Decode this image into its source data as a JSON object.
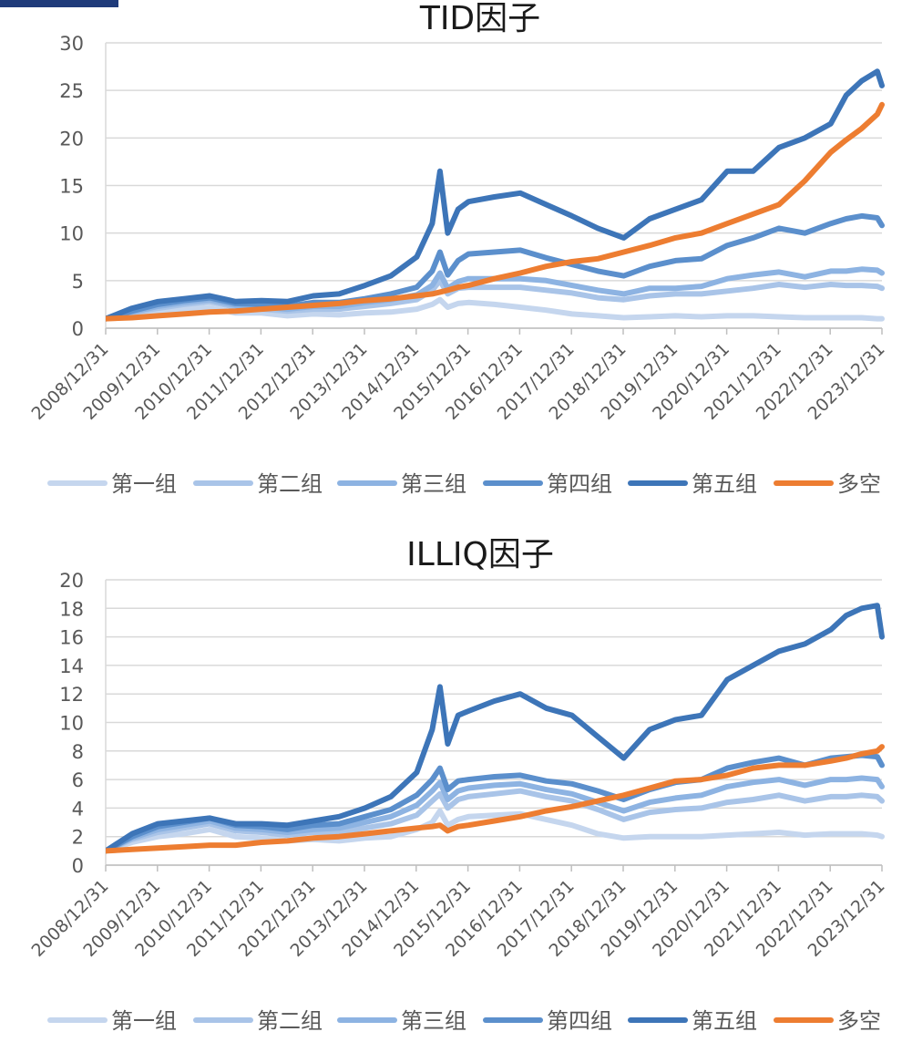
{
  "chart_data": [
    {
      "type": "line",
      "title": "TID因子",
      "x_ticks": [
        "2008/12/31",
        "2009/12/31",
        "2010/12/31",
        "2011/12/31",
        "2012/12/31",
        "2013/12/31",
        "2014/12/31",
        "2015/12/31",
        "2016/12/31",
        "2017/12/31",
        "2018/12/31",
        "2019/12/31",
        "2020/12/31",
        "2021/12/31",
        "2022/12/31",
        "2023/12/31"
      ],
      "x": [
        2008.99,
        2009.5,
        2010.0,
        2010.5,
        2011.0,
        2011.5,
        2012.0,
        2012.5,
        2013.0,
        2013.5,
        2014.0,
        2014.5,
        2015.0,
        2015.3,
        2015.45,
        2015.6,
        2015.8,
        2016.0,
        2016.5,
        2017.0,
        2017.5,
        2018.0,
        2018.5,
        2019.0,
        2019.5,
        2020.0,
        2020.5,
        2021.0,
        2021.5,
        2022.0,
        2022.5,
        2023.0,
        2023.3,
        2023.6,
        2023.9,
        2023.99
      ],
      "ylim": [
        0,
        30
      ],
      "y_ticks": [
        0,
        5,
        10,
        15,
        20,
        25,
        30
      ],
      "legend_position": "bottom",
      "grid": true,
      "series": [
        {
          "name": "第一组",
          "color": "#c5d6ee",
          "values": [
            1.0,
            1.4,
            1.8,
            2.0,
            2.2,
            1.6,
            1.6,
            1.3,
            1.5,
            1.4,
            1.6,
            1.7,
            2.0,
            2.5,
            3.0,
            2.2,
            2.6,
            2.7,
            2.5,
            2.2,
            1.9,
            1.5,
            1.3,
            1.1,
            1.2,
            1.3,
            1.2,
            1.3,
            1.3,
            1.2,
            1.1,
            1.1,
            1.1,
            1.1,
            1.0,
            1.0
          ]
        },
        {
          "name": "第二组",
          "color": "#a9c4e8",
          "values": [
            1.0,
            1.6,
            2.1,
            2.5,
            2.8,
            2.2,
            2.0,
            1.8,
            2.0,
            2.0,
            2.3,
            2.6,
            3.0,
            4.0,
            5.0,
            3.6,
            4.2,
            4.3,
            4.3,
            4.3,
            4.0,
            3.7,
            3.2,
            3.0,
            3.4,
            3.6,
            3.6,
            3.9,
            4.2,
            4.6,
            4.3,
            4.6,
            4.5,
            4.5,
            4.4,
            4.2
          ]
        },
        {
          "name": "第三组",
          "color": "#8db3e2",
          "values": [
            1.0,
            1.7,
            2.3,
            2.7,
            3.0,
            2.4,
            2.2,
            2.0,
            2.3,
            2.3,
            2.7,
            3.0,
            3.5,
            4.5,
            5.8,
            4.2,
            4.9,
            5.2,
            5.2,
            5.2,
            5.0,
            4.5,
            4.0,
            3.6,
            4.2,
            4.2,
            4.4,
            5.2,
            5.6,
            5.9,
            5.4,
            6.0,
            6.0,
            6.2,
            6.1,
            5.8
          ]
        },
        {
          "name": "第四组",
          "color": "#5b8fcc",
          "values": [
            1.0,
            1.8,
            2.5,
            2.9,
            3.2,
            2.6,
            2.5,
            2.3,
            2.7,
            2.7,
            3.1,
            3.6,
            4.3,
            6.0,
            8.0,
            5.6,
            7.1,
            7.8,
            8.0,
            8.2,
            7.4,
            6.7,
            6.0,
            5.5,
            6.5,
            7.1,
            7.3,
            8.7,
            9.5,
            10.5,
            10.0,
            11.0,
            11.5,
            11.8,
            11.6,
            10.8
          ]
        },
        {
          "name": "第五组",
          "color": "#3d75b8",
          "values": [
            1.0,
            2.1,
            2.8,
            3.1,
            3.4,
            2.8,
            2.9,
            2.8,
            3.4,
            3.6,
            4.5,
            5.5,
            7.5,
            11.0,
            16.5,
            10.0,
            12.5,
            13.3,
            13.8,
            14.2,
            13.0,
            11.8,
            10.5,
            9.5,
            11.5,
            12.5,
            13.5,
            16.5,
            16.5,
            19.0,
            20.0,
            21.5,
            24.5,
            26.0,
            27.0,
            25.5
          ]
        },
        {
          "name": "多空",
          "color": "#ed7d31",
          "values": [
            1.0,
            1.1,
            1.3,
            1.5,
            1.7,
            1.8,
            2.0,
            2.2,
            2.4,
            2.6,
            2.9,
            3.1,
            3.4,
            3.6,
            3.8,
            4.0,
            4.3,
            4.5,
            5.2,
            5.8,
            6.5,
            7.0,
            7.3,
            8.0,
            8.7,
            9.5,
            10.0,
            11.0,
            12.0,
            13.0,
            15.5,
            18.5,
            19.8,
            21.0,
            22.5,
            23.5
          ]
        }
      ]
    },
    {
      "type": "line",
      "title": "ILLIQ因子",
      "x_ticks": [
        "2008/12/31",
        "2009/12/31",
        "2010/12/31",
        "2011/12/31",
        "2012/12/31",
        "2013/12/31",
        "2014/12/31",
        "2015/12/31",
        "2016/12/31",
        "2017/12/31",
        "2018/12/31",
        "2019/12/31",
        "2020/12/31",
        "2021/12/31",
        "2022/12/31",
        "2023/12/31"
      ],
      "x": [
        2008.99,
        2009.5,
        2010.0,
        2010.5,
        2011.0,
        2011.5,
        2012.0,
        2012.5,
        2013.0,
        2013.5,
        2014.0,
        2014.5,
        2015.0,
        2015.3,
        2015.45,
        2015.6,
        2015.8,
        2016.0,
        2016.5,
        2017.0,
        2017.5,
        2018.0,
        2018.5,
        2019.0,
        2019.5,
        2020.0,
        2020.5,
        2021.0,
        2021.5,
        2022.0,
        2022.5,
        2023.0,
        2023.3,
        2023.6,
        2023.9,
        2023.99
      ],
      "ylim": [
        0,
        20
      ],
      "y_ticks": [
        0,
        2,
        4,
        6,
        8,
        10,
        12,
        14,
        16,
        18,
        20
      ],
      "legend_position": "bottom",
      "grid": true,
      "series": [
        {
          "name": "第一组",
          "color": "#c5d6ee",
          "values": [
            1.0,
            1.6,
            2.0,
            2.2,
            2.5,
            2.0,
            1.9,
            1.7,
            1.8,
            1.7,
            1.9,
            2.0,
            2.5,
            3.0,
            3.8,
            2.8,
            3.2,
            3.4,
            3.5,
            3.6,
            3.2,
            2.8,
            2.2,
            1.9,
            2.0,
            2.0,
            2.0,
            2.1,
            2.2,
            2.3,
            2.1,
            2.2,
            2.2,
            2.2,
            2.1,
            2.0
          ]
        },
        {
          "name": "第二组",
          "color": "#a9c4e8",
          "values": [
            1.0,
            1.8,
            2.3,
            2.6,
            2.9,
            2.4,
            2.3,
            2.1,
            2.3,
            2.3,
            2.6,
            2.9,
            3.5,
            4.5,
            5.0,
            4.0,
            4.6,
            4.8,
            5.0,
            5.2,
            4.8,
            4.5,
            3.9,
            3.2,
            3.7,
            3.9,
            4.0,
            4.4,
            4.6,
            4.9,
            4.5,
            4.8,
            4.8,
            4.9,
            4.8,
            4.5
          ]
        },
        {
          "name": "第三组",
          "color": "#8db3e2",
          "values": [
            1.0,
            1.9,
            2.5,
            2.8,
            3.1,
            2.6,
            2.5,
            2.3,
            2.5,
            2.6,
            3.0,
            3.4,
            4.2,
            5.2,
            5.8,
            4.6,
            5.2,
            5.4,
            5.6,
            5.7,
            5.3,
            5.0,
            4.4,
            3.8,
            4.4,
            4.7,
            4.9,
            5.5,
            5.8,
            6.0,
            5.6,
            6.0,
            6.0,
            6.1,
            6.0,
            5.5
          ]
        },
        {
          "name": "第四组",
          "color": "#5b8fcc",
          "values": [
            1.0,
            2.0,
            2.7,
            3.0,
            3.3,
            2.8,
            2.7,
            2.5,
            2.8,
            2.9,
            3.4,
            3.9,
            4.9,
            6.0,
            6.8,
            5.3,
            5.9,
            6.0,
            6.2,
            6.3,
            5.9,
            5.7,
            5.2,
            4.6,
            5.3,
            5.8,
            6.0,
            6.8,
            7.2,
            7.5,
            7.0,
            7.5,
            7.6,
            7.7,
            7.6,
            7.0
          ]
        },
        {
          "name": "第五组",
          "color": "#3d75b8",
          "values": [
            1.0,
            2.2,
            2.9,
            3.1,
            3.3,
            2.9,
            2.9,
            2.8,
            3.1,
            3.4,
            4.0,
            4.8,
            6.5,
            9.5,
            12.5,
            8.5,
            10.5,
            10.8,
            11.5,
            12.0,
            11.0,
            10.5,
            9.0,
            7.5,
            9.5,
            10.2,
            10.5,
            13.0,
            14.0,
            15.0,
            15.5,
            16.5,
            17.5,
            18.0,
            18.2,
            16.0
          ]
        },
        {
          "name": "多空",
          "color": "#ed7d31",
          "values": [
            1.0,
            1.1,
            1.2,
            1.3,
            1.4,
            1.4,
            1.6,
            1.7,
            1.9,
            2.0,
            2.2,
            2.4,
            2.6,
            2.7,
            2.8,
            2.4,
            2.7,
            2.8,
            3.1,
            3.4,
            3.8,
            4.1,
            4.5,
            4.9,
            5.4,
            5.9,
            6.0,
            6.3,
            6.8,
            7.0,
            7.0,
            7.3,
            7.5,
            7.8,
            8.0,
            8.3
          ]
        }
      ]
    }
  ]
}
